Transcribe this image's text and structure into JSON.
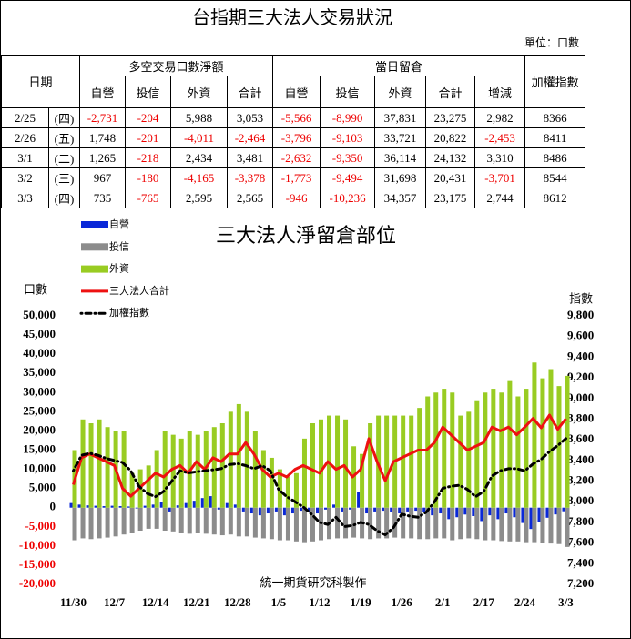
{
  "header": {
    "title": "台指期三大法人交易狀況",
    "unit": "單位：口數"
  },
  "table": {
    "date_header": "日期",
    "net_header": "多空交易口數淨額",
    "oi_header": "當日留倉",
    "index_header": "加權指數",
    "subheaders": [
      "自營",
      "投信",
      "外資",
      "合計",
      "自營",
      "投信",
      "外資",
      "合計",
      "增減"
    ],
    "rows": [
      [
        "2/25",
        "(四)",
        "-2,731",
        "-204",
        "5,988",
        "3,053",
        "-5,566",
        "-8,990",
        "37,831",
        "23,275",
        "2,982",
        "8366"
      ],
      [
        "2/26",
        "(五)",
        "1,748",
        "-201",
        "-4,011",
        "-2,464",
        "-3,796",
        "-9,103",
        "33,721",
        "20,822",
        "-2,453",
        "8411"
      ],
      [
        "3/1",
        "(二)",
        "1,265",
        "-218",
        "2,434",
        "3,481",
        "-2,632",
        "-9,350",
        "36,114",
        "24,132",
        "3,310",
        "8486"
      ],
      [
        "3/2",
        "(三)",
        "967",
        "-180",
        "-4,165",
        "-3,378",
        "-1,773",
        "-9,494",
        "31,698",
        "20,431",
        "-3,701",
        "8544"
      ],
      [
        "3/3",
        "(四)",
        "735",
        "-765",
        "2,595",
        "2,565",
        "-946",
        "-10,236",
        "34,357",
        "23,175",
        "2,744",
        "8612"
      ]
    ]
  },
  "chart_data": {
    "type": "bar",
    "title": "三大法人淨留倉部位",
    "ylabel": "口數",
    "y2label": "指數",
    "annotation": "統一期貨研究科製作",
    "categories": [
      "11/30",
      null,
      null,
      null,
      null,
      "12/7",
      null,
      null,
      null,
      null,
      "12/14",
      null,
      null,
      null,
      null,
      "12/21",
      null,
      null,
      null,
      null,
      "12/28",
      null,
      null,
      null,
      null,
      "1/5",
      null,
      null,
      null,
      null,
      "1/12",
      null,
      null,
      null,
      null,
      "1/19",
      null,
      null,
      null,
      null,
      "1/26",
      null,
      null,
      null,
      null,
      "2/1",
      null,
      null,
      null,
      null,
      "2/17",
      null,
      null,
      null,
      null,
      "2/24",
      null,
      null,
      null,
      null,
      "3/3"
    ],
    "ylim": [
      -20000,
      50000
    ],
    "yticks": [
      {
        "value": -20000,
        "label": "-20,000"
      },
      {
        "value": -15000,
        "label": "-15,000"
      },
      {
        "value": -10000,
        "label": "-10,000"
      },
      {
        "value": -5000,
        "label": "-5,000"
      },
      0,
      {
        "value": 5000,
        "label": "5,000"
      },
      {
        "value": 10000,
        "label": "10,000"
      },
      {
        "value": 15000,
        "label": "15,000"
      },
      {
        "value": 20000,
        "label": "20,000"
      },
      {
        "value": 25000,
        "label": "25,000"
      },
      {
        "value": 30000,
        "label": "30,000"
      },
      {
        "value": 35000,
        "label": "35,000"
      },
      {
        "value": 40000,
        "label": "40,000"
      },
      {
        "value": 45000,
        "label": "45,000"
      },
      {
        "value": 50000,
        "label": "50,000"
      }
    ],
    "y2lim": [
      7200,
      9800
    ],
    "y2ticks": [
      {
        "value": 7200,
        "label": "7,200"
      },
      {
        "value": 7400,
        "label": "7,400"
      },
      {
        "value": 7600,
        "label": "7,600"
      },
      {
        "value": 7800,
        "label": "7,800"
      },
      {
        "value": 8000,
        "label": "8,000"
      },
      {
        "value": 8200,
        "label": "8,200"
      },
      {
        "value": 8400,
        "label": "8,400"
      },
      {
        "value": 8600,
        "label": "8,600"
      },
      {
        "value": 8800,
        "label": "8,800"
      },
      {
        "value": 9000,
        "label": "9,000"
      },
      {
        "value": 9200,
        "label": "9,200"
      },
      {
        "value": 9400,
        "label": "9,400"
      },
      {
        "value": 9600,
        "label": "9,600"
      },
      {
        "value": 9800,
        "label": "9,800"
      }
    ],
    "series": [
      {
        "name": "自營",
        "type": "bar",
        "color": "#0a28d8",
        "values": [
          1200,
          800,
          600,
          500,
          400,
          500,
          400,
          300,
          -200,
          500,
          800,
          1500,
          -1000,
          600,
          1200,
          1800,
          2500,
          3000,
          -500,
          1200,
          800,
          -1000,
          -1500,
          -2000,
          -1500,
          -1000,
          -2000,
          -1500,
          -800,
          -1000,
          -1500,
          -500,
          800,
          -1000,
          -500,
          4000,
          -1500,
          -1000,
          -800,
          -1200,
          -1500,
          -1000,
          -800,
          -1200,
          -2000,
          -1500,
          -3000,
          -2500,
          -1800,
          -2200,
          -3500,
          -2000,
          -3000,
          -1500,
          -2500,
          -4000,
          -5566,
          -3796,
          -2632,
          -1773,
          -946
        ]
      },
      {
        "name": "投信",
        "type": "bar",
        "color": "#8c8c8c",
        "values": [
          -8500,
          -8000,
          -8200,
          -8000,
          -7800,
          -7500,
          -7000,
          -6500,
          -6000,
          -5500,
          -5500,
          -6000,
          -6200,
          -6500,
          -6800,
          -6500,
          -6800,
          -7000,
          -7200,
          -7000,
          -7500,
          -7500,
          -7800,
          -8000,
          -8200,
          -8500,
          -8500,
          -8800,
          -9000,
          -8800,
          -8500,
          -8200,
          -8000,
          -8000,
          -7800,
          -8000,
          -8200,
          -8000,
          -8000,
          -7800,
          -8000,
          -8000,
          -8200,
          -8200,
          -8000,
          -8000,
          -8500,
          -8200,
          -8000,
          -8200,
          -8500,
          -8500,
          -8700,
          -8800,
          -8800,
          -9000,
          -8990,
          -9103,
          -9350,
          -9494,
          -10236
        ]
      },
      {
        "name": "外資",
        "type": "bar",
        "color": "#99cc22",
        "values": [
          15000,
          23000,
          22000,
          23000,
          21000,
          20000,
          20000,
          9000,
          10000,
          11000,
          15000,
          20000,
          19000,
          18000,
          20000,
          19000,
          20000,
          21000,
          22000,
          25000,
          27000,
          25000,
          20000,
          15000,
          13000,
          10000,
          8000,
          9000,
          18000,
          22000,
          23000,
          24000,
          24000,
          23000,
          16000,
          14000,
          22000,
          24000,
          24000,
          24000,
          24000,
          24000,
          26000,
          29000,
          30000,
          31000,
          30000,
          24000,
          25000,
          28000,
          30000,
          31000,
          30000,
          33000,
          29000,
          31000,
          37831,
          33721,
          36114,
          31698,
          34357
        ]
      },
      {
        "name": "三大法人合計",
        "type": "line",
        "color": "#ee1111",
        "values": [
          6000,
          13000,
          14000,
          13000,
          12000,
          11000,
          5000,
          3000,
          5000,
          7000,
          9000,
          8000,
          10000,
          11000,
          9000,
          12000,
          10000,
          13000,
          12000,
          14000,
          14000,
          17000,
          14000,
          10000,
          8000,
          9000,
          8000,
          10000,
          11000,
          10000,
          9000,
          12000,
          10000,
          11000,
          8000,
          10000,
          18000,
          12000,
          7000,
          12000,
          13000,
          14000,
          15000,
          15000,
          17000,
          21000,
          19000,
          17000,
          15000,
          16000,
          17000,
          21000,
          20000,
          21000,
          19000,
          21000,
          23275,
          20822,
          24132,
          20431,
          23175
        ]
      },
      {
        "name": "加權指數",
        "type": "line",
        "axis": "y2",
        "style": "dash-dot",
        "color": "#000000",
        "values": [
          8300,
          8450,
          8470,
          8450,
          8420,
          8400,
          8380,
          8300,
          8150,
          8080,
          8050,
          8100,
          8200,
          8300,
          8280,
          8290,
          8300,
          8310,
          8320,
          8360,
          8370,
          8350,
          8320,
          8350,
          8300,
          8120,
          8050,
          8000,
          7950,
          7880,
          7800,
          7780,
          7850,
          7760,
          7770,
          7800,
          7780,
          7720,
          7680,
          7750,
          7880,
          7860,
          7850,
          7900,
          8000,
          8130,
          8150,
          8160,
          8120,
          8050,
          8100,
          8250,
          8300,
          8320,
          8320,
          8300,
          8366,
          8411,
          8486,
          8544,
          8612
        ]
      }
    ]
  }
}
